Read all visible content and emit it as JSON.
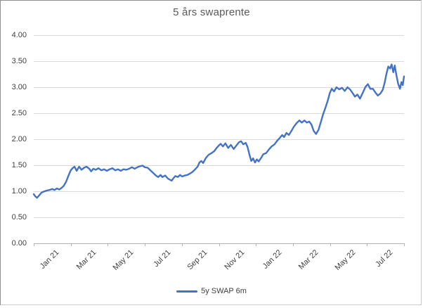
{
  "chart": {
    "title": "5 års swaprente",
    "legend": {
      "label": "5y SWAP 6m"
    }
  },
  "chart_data": {
    "type": "line",
    "title": "5 års swaprente",
    "xlabel": "",
    "ylabel": "",
    "x_unit": "months since Jan 2021",
    "x_range": [
      0,
      20
    ],
    "ylim": [
      0,
      4
    ],
    "grid": true,
    "legend_position": "bottom",
    "y_tick_values": [
      4.0,
      3.5,
      3.0,
      2.5,
      2.0,
      1.5,
      1.0,
      0.5,
      0.0
    ],
    "y_ticks": [
      "4.00",
      "3.50",
      "3.00",
      "2.50",
      "2.00",
      "1.50",
      "1.00",
      "0.50",
      "0.00"
    ],
    "x_tick_months": [
      0,
      2,
      4,
      6,
      8,
      10,
      12,
      14,
      16,
      18,
      20
    ],
    "x_label_months": [
      1,
      3,
      5,
      7,
      9,
      11,
      13,
      15,
      17,
      19
    ],
    "x_labels": [
      "Jan 21",
      "Mar 21",
      "May 21",
      "Jul 21",
      "Sep 21",
      "Nov 21",
      "Jan 22",
      "Mar 22",
      "May 22",
      "Jul 22"
    ],
    "colors": {
      "line": "#4472C4",
      "gridline": "#d9d9d9",
      "axis": "#b0b0b0",
      "title_text": "#595959",
      "tick_text": "#3f3f3f"
    },
    "series": [
      {
        "name": "5y SWAP 6m",
        "color": "#4472C4",
        "points": [
          [
            0.0,
            0.94
          ],
          [
            0.08,
            0.9
          ],
          [
            0.18,
            0.87
          ],
          [
            0.3,
            0.92
          ],
          [
            0.42,
            0.97
          ],
          [
            0.55,
            0.99
          ],
          [
            0.7,
            1.01
          ],
          [
            0.85,
            1.02
          ],
          [
            1.0,
            1.04
          ],
          [
            1.12,
            1.02
          ],
          [
            1.25,
            1.05
          ],
          [
            1.38,
            1.03
          ],
          [
            1.5,
            1.06
          ],
          [
            1.62,
            1.1
          ],
          [
            1.75,
            1.18
          ],
          [
            1.88,
            1.3
          ],
          [
            2.0,
            1.4
          ],
          [
            2.1,
            1.44
          ],
          [
            2.2,
            1.47
          ],
          [
            2.32,
            1.39
          ],
          [
            2.45,
            1.47
          ],
          [
            2.58,
            1.41
          ],
          [
            2.72,
            1.45
          ],
          [
            2.85,
            1.47
          ],
          [
            3.0,
            1.43
          ],
          [
            3.1,
            1.38
          ],
          [
            3.22,
            1.43
          ],
          [
            3.35,
            1.41
          ],
          [
            3.5,
            1.44
          ],
          [
            3.65,
            1.4
          ],
          [
            3.8,
            1.42
          ],
          [
            3.95,
            1.39
          ],
          [
            4.1,
            1.42
          ],
          [
            4.25,
            1.44
          ],
          [
            4.4,
            1.4
          ],
          [
            4.55,
            1.42
          ],
          [
            4.7,
            1.39
          ],
          [
            4.85,
            1.42
          ],
          [
            5.0,
            1.41
          ],
          [
            5.15,
            1.43
          ],
          [
            5.3,
            1.46
          ],
          [
            5.45,
            1.43
          ],
          [
            5.6,
            1.46
          ],
          [
            5.75,
            1.48
          ],
          [
            5.88,
            1.49
          ],
          [
            6.0,
            1.46
          ],
          [
            6.15,
            1.45
          ],
          [
            6.3,
            1.4
          ],
          [
            6.45,
            1.35
          ],
          [
            6.6,
            1.3
          ],
          [
            6.72,
            1.27
          ],
          [
            6.85,
            1.31
          ],
          [
            6.95,
            1.27
          ],
          [
            7.1,
            1.3
          ],
          [
            7.25,
            1.24
          ],
          [
            7.45,
            1.2
          ],
          [
            7.55,
            1.25
          ],
          [
            7.65,
            1.29
          ],
          [
            7.78,
            1.27
          ],
          [
            7.9,
            1.31
          ],
          [
            8.02,
            1.28
          ],
          [
            8.15,
            1.3
          ],
          [
            8.3,
            1.31
          ],
          [
            8.45,
            1.34
          ],
          [
            8.58,
            1.37
          ],
          [
            8.72,
            1.42
          ],
          [
            8.85,
            1.47
          ],
          [
            8.95,
            1.55
          ],
          [
            9.05,
            1.58
          ],
          [
            9.15,
            1.54
          ],
          [
            9.3,
            1.64
          ],
          [
            9.45,
            1.7
          ],
          [
            9.6,
            1.73
          ],
          [
            9.75,
            1.77
          ],
          [
            9.88,
            1.83
          ],
          [
            10.0,
            1.88
          ],
          [
            10.1,
            1.91
          ],
          [
            10.22,
            1.86
          ],
          [
            10.35,
            1.92
          ],
          [
            10.5,
            1.83
          ],
          [
            10.65,
            1.89
          ],
          [
            10.8,
            1.81
          ],
          [
            10.95,
            1.88
          ],
          [
            11.08,
            1.94
          ],
          [
            11.2,
            1.96
          ],
          [
            11.32,
            1.9
          ],
          [
            11.45,
            1.93
          ],
          [
            11.55,
            1.85
          ],
          [
            11.65,
            1.7
          ],
          [
            11.75,
            1.58
          ],
          [
            11.85,
            1.63
          ],
          [
            11.95,
            1.55
          ],
          [
            12.05,
            1.61
          ],
          [
            12.15,
            1.57
          ],
          [
            12.28,
            1.64
          ],
          [
            12.4,
            1.71
          ],
          [
            12.55,
            1.73
          ],
          [
            12.7,
            1.8
          ],
          [
            12.85,
            1.86
          ],
          [
            13.0,
            1.9
          ],
          [
            13.15,
            1.97
          ],
          [
            13.28,
            2.02
          ],
          [
            13.42,
            2.08
          ],
          [
            13.52,
            2.04
          ],
          [
            13.65,
            2.12
          ],
          [
            13.78,
            2.08
          ],
          [
            13.92,
            2.16
          ],
          [
            14.05,
            2.24
          ],
          [
            14.2,
            2.31
          ],
          [
            14.35,
            2.36
          ],
          [
            14.48,
            2.32
          ],
          [
            14.62,
            2.36
          ],
          [
            14.75,
            2.32
          ],
          [
            14.88,
            2.34
          ],
          [
            15.0,
            2.28
          ],
          [
            15.12,
            2.16
          ],
          [
            15.25,
            2.1
          ],
          [
            15.38,
            2.18
          ],
          [
            15.5,
            2.32
          ],
          [
            15.62,
            2.47
          ],
          [
            15.75,
            2.6
          ],
          [
            15.88,
            2.74
          ],
          [
            16.0,
            2.9
          ],
          [
            16.1,
            2.97
          ],
          [
            16.22,
            2.92
          ],
          [
            16.35,
            3.0
          ],
          [
            16.5,
            2.96
          ],
          [
            16.65,
            2.99
          ],
          [
            16.8,
            2.93
          ],
          [
            16.95,
            3.0
          ],
          [
            17.08,
            2.96
          ],
          [
            17.22,
            2.89
          ],
          [
            17.35,
            2.82
          ],
          [
            17.48,
            2.86
          ],
          [
            17.62,
            2.78
          ],
          [
            17.78,
            2.9
          ],
          [
            17.92,
            3.01
          ],
          [
            18.05,
            3.06
          ],
          [
            18.18,
            2.97
          ],
          [
            18.32,
            2.97
          ],
          [
            18.45,
            2.9
          ],
          [
            18.58,
            2.84
          ],
          [
            18.72,
            2.88
          ],
          [
            18.85,
            2.95
          ],
          [
            18.95,
            3.08
          ],
          [
            19.05,
            3.26
          ],
          [
            19.15,
            3.4
          ],
          [
            19.25,
            3.36
          ],
          [
            19.33,
            3.44
          ],
          [
            19.42,
            3.29
          ],
          [
            19.5,
            3.42
          ],
          [
            19.58,
            3.25
          ],
          [
            19.68,
            3.07
          ],
          [
            19.78,
            2.97
          ],
          [
            19.86,
            3.1
          ],
          [
            19.93,
            3.04
          ],
          [
            20.0,
            3.21
          ]
        ]
      }
    ]
  }
}
